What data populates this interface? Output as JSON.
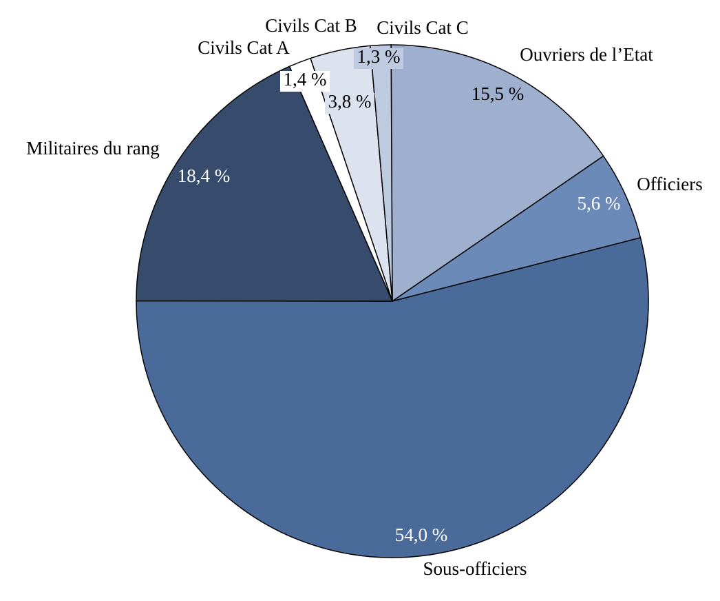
{
  "chart_data": {
    "type": "pie",
    "categories": [
      "Ouvriers de l’Etat",
      "Officiers",
      "Sous-officiers",
      "Militaires du rang",
      "Civils Cat A",
      "Civils Cat B",
      "Civils Cat C"
    ],
    "values": [
      15.5,
      5.6,
      54.0,
      18.4,
      1.4,
      3.8,
      1.3
    ],
    "value_labels": [
      "15,5 %",
      "5,6 %",
      "54,0 %",
      "18,4 %",
      "1,4 %",
      "3,8 %",
      "1,3 %"
    ],
    "colors": [
      "#9eb0cd",
      "#6c8ab8",
      "#4a6b9a",
      "#374c6d",
      "#ffffff",
      "#dde3ee",
      "#bdcadf"
    ]
  }
}
